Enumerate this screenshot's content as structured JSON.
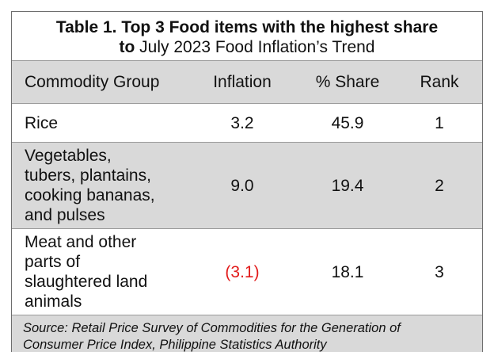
{
  "table": {
    "title_line1": "Table 1. Top 3 Food items with the highest share",
    "title_line2_bold": "to",
    "title_line2_rest": " July 2023 Food Inflation’s Trend",
    "columns": [
      "Commodity Group",
      "Inflation",
      "% Share",
      "Rank"
    ],
    "rows": [
      {
        "commodity_lines": [
          "Rice"
        ],
        "inflation": "3.2",
        "share": "45.9",
        "rank": "1"
      },
      {
        "commodity_lines": [
          "Vegetables,",
          "tubers, plantains,",
          "cooking bananas,",
          "and pulses"
        ],
        "inflation": "9.0",
        "share": "19.4",
        "rank": "2"
      },
      {
        "commodity_lines": [
          "Meat and other",
          "parts of",
          "slaughtered land",
          "animals"
        ],
        "inflation": "(3.1)",
        "share": "18.1",
        "rank": "3"
      }
    ],
    "negative_color": "#e21b1b",
    "shade_color": "#d9d9d9",
    "source_line1": "Source: Retail Price Survey of Commodities for the Generation of",
    "source_line2": "Consumer Price Index, Philippine Statistics Authority"
  }
}
